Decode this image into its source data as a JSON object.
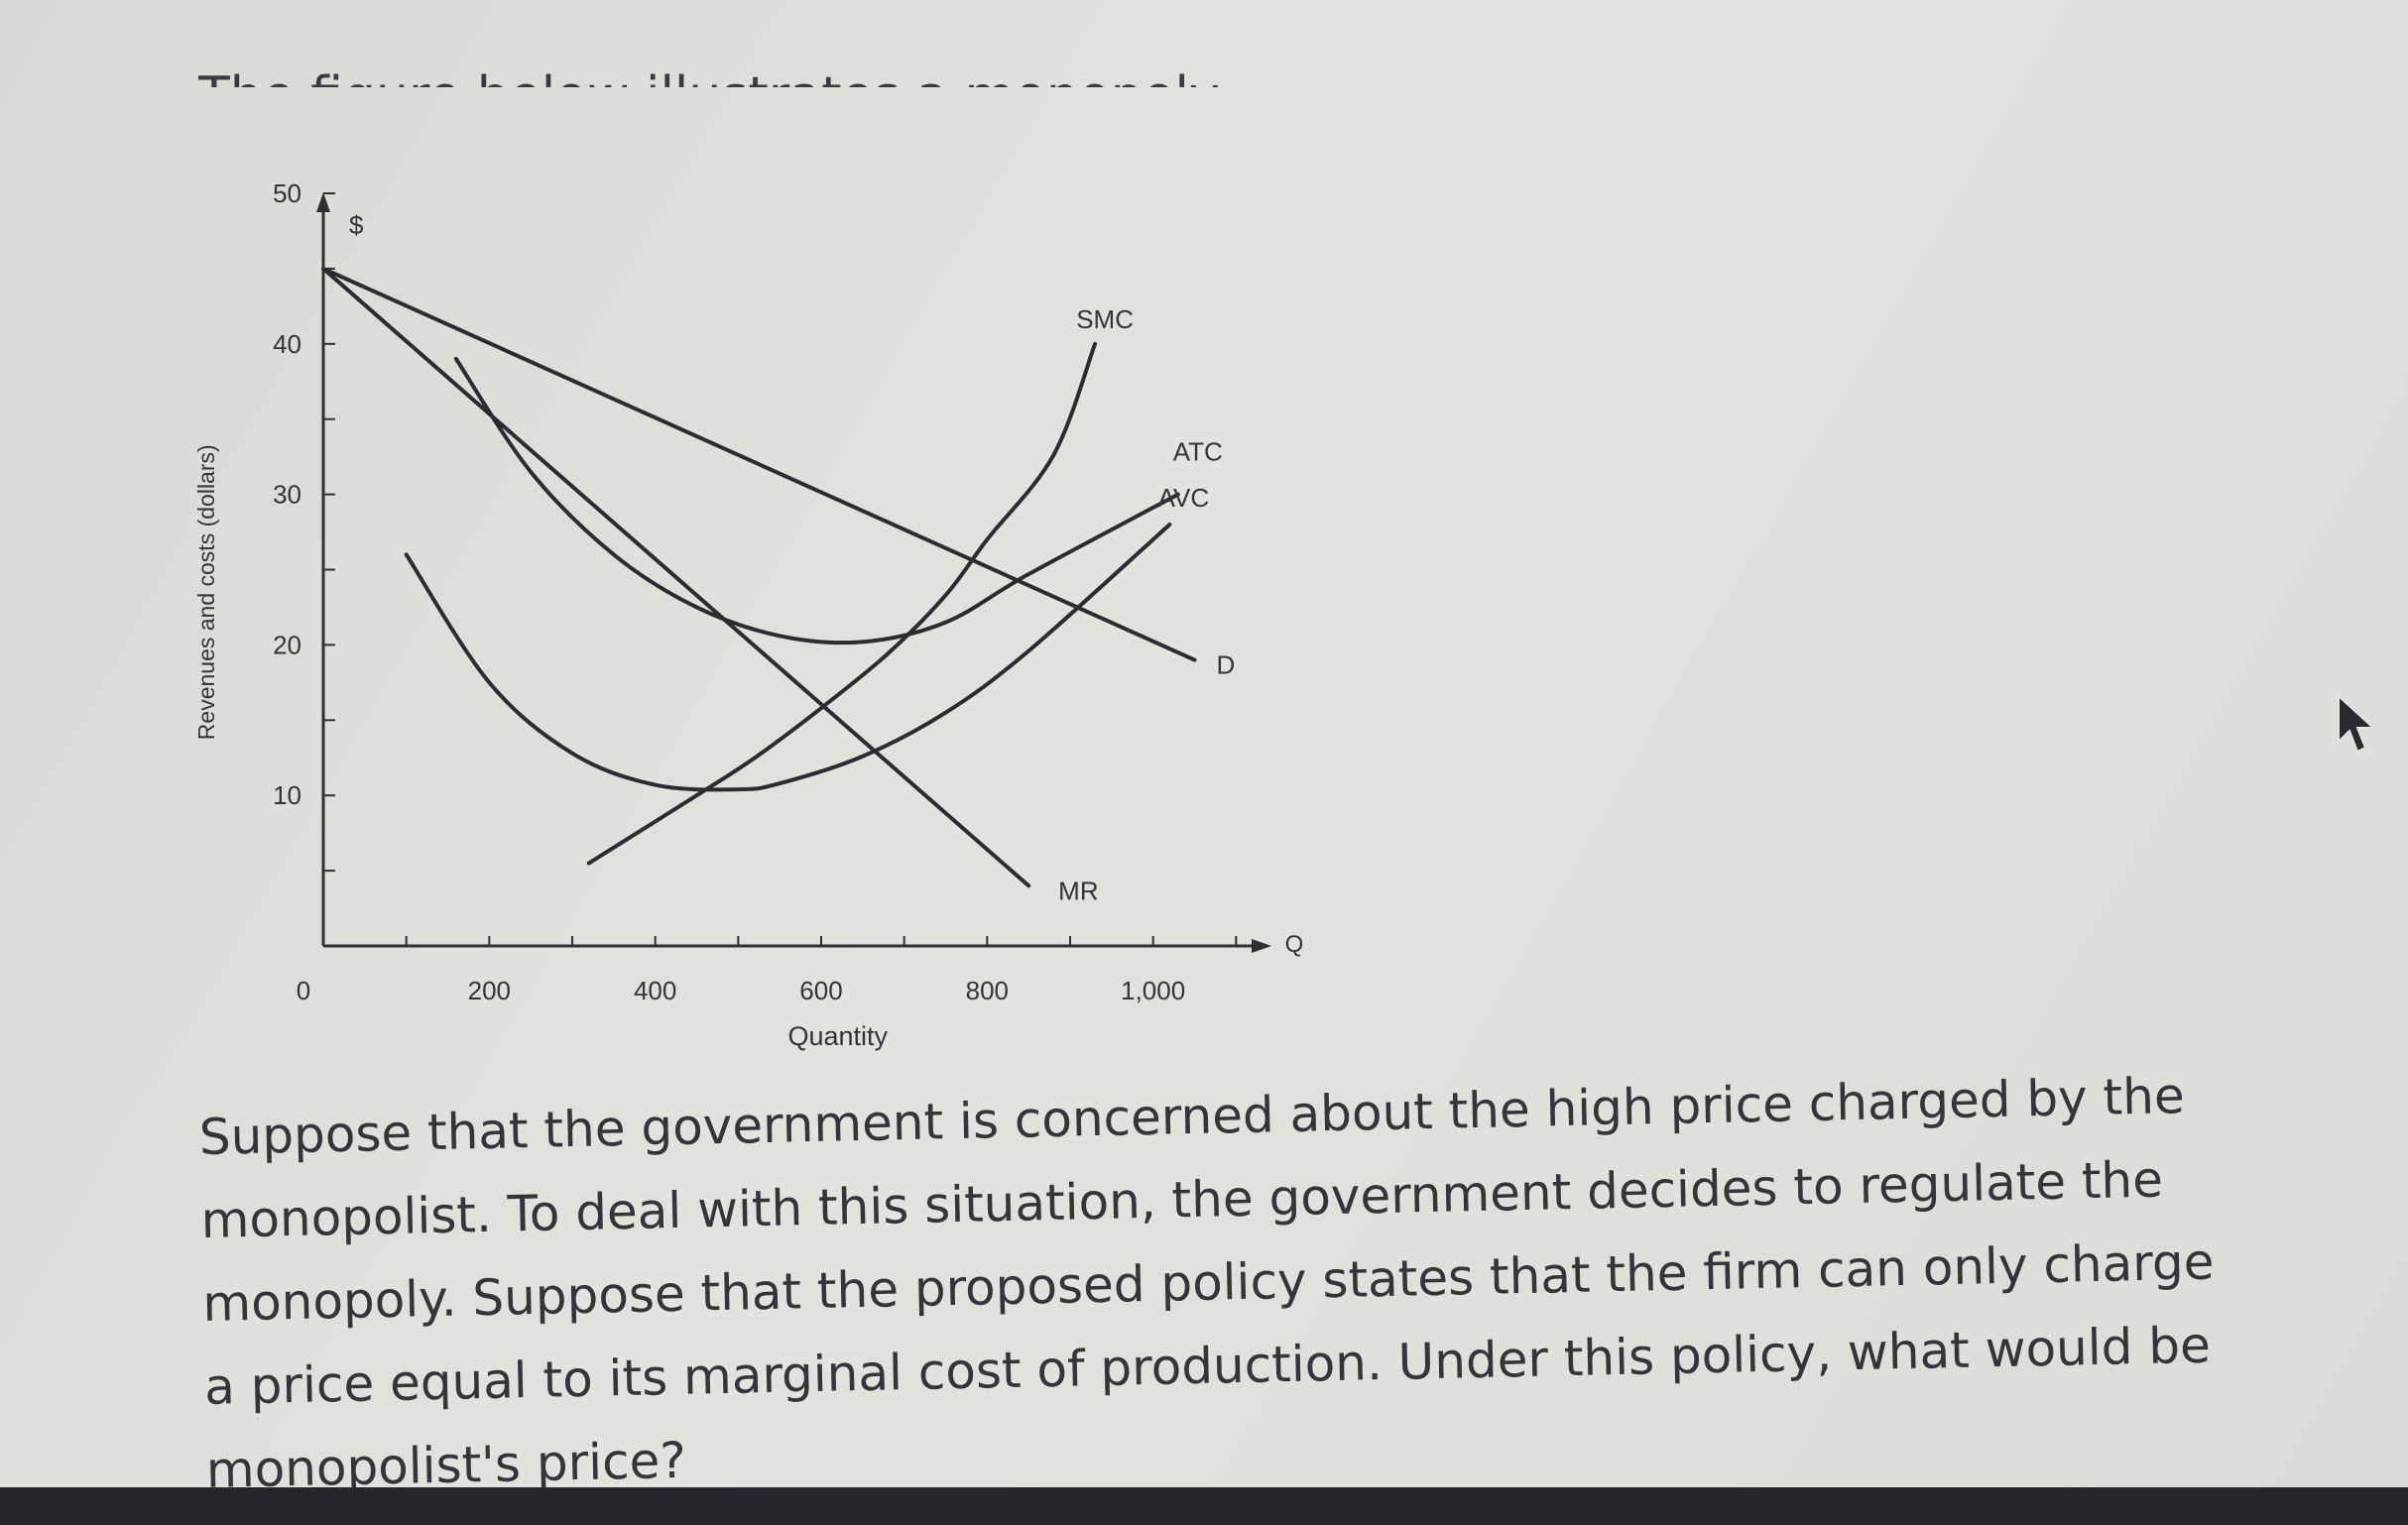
{
  "intro_text": "The figure below illustrates a monopoly.",
  "question_text": "Suppose that the government is concerned about the high price charged by the monopolist. To deal with this situation, the government decides to regulate the monopoly. Suppose that the proposed policy states that the firm can only charge a price equal to its marginal cost of production. Under this policy, what would be monopolist's price?",
  "chart_data": {
    "type": "line",
    "ylabel": "Revenues and costs (dollars)",
    "y_unit_label": "$",
    "xlabel": "Quantity",
    "x_axis_letter": "Q",
    "origin_label": "0",
    "xlim": [
      0,
      1200
    ],
    "ylim": [
      0,
      50
    ],
    "x_ticks": [
      200,
      400,
      600,
      800,
      1000
    ],
    "x_tick_labels": [
      "200",
      "400",
      "600",
      "800",
      "1,000"
    ],
    "y_ticks": [
      10,
      20,
      30,
      40,
      50
    ],
    "y_tick_labels": [
      "10",
      "20",
      "30",
      40,
      "50"
    ],
    "grid": false,
    "series": [
      {
        "name": "D",
        "x": [
          0,
          1050
        ],
        "y": [
          45,
          19
        ]
      },
      {
        "name": "MR",
        "x": [
          0,
          850
        ],
        "y": [
          45,
          4
        ]
      },
      {
        "name": "SMC",
        "x": [
          320,
          450,
          520,
          600,
          680,
          750,
          800,
          880,
          930
        ],
        "y": [
          5.5,
          10,
          12.5,
          15.8,
          19.4,
          23.3,
          27,
          32.6,
          40
        ]
      },
      {
        "name": "ATC",
        "x": [
          160,
          250,
          350,
          450,
          550,
          650,
          750,
          850,
          1030
        ],
        "y": [
          39,
          31.5,
          26,
          22.5,
          20.6,
          20.2,
          21.5,
          24.7,
          30
        ]
      },
      {
        "name": "AVC",
        "x": [
          100,
          200,
          300,
          400,
          500,
          550,
          650,
          750,
          850,
          1020
        ],
        "y": [
          26,
          17.5,
          12.8,
          10.7,
          10.4,
          10.8,
          12.6,
          15.5,
          19.6,
          28
        ]
      }
    ]
  }
}
